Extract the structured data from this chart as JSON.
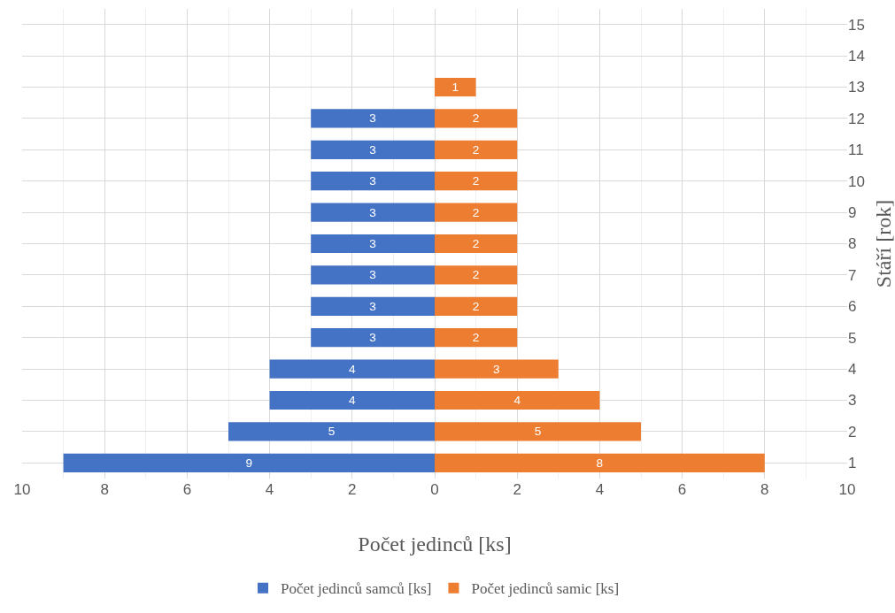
{
  "chart_data": {
    "type": "bar",
    "orientation": "horizontal",
    "xlabel": "Počet jedinců [ks]",
    "ylabel": "Stáří [rok]",
    "categories": [
      "15",
      "14",
      "13",
      "12",
      "11",
      "10",
      "9",
      "8",
      "7",
      "6",
      "5",
      "4",
      "3",
      "2",
      "1"
    ],
    "series": [
      {
        "name": "Počet jedinců samců [ks]",
        "color": "#4472c4",
        "values": [
          null,
          null,
          null,
          3,
          3,
          3,
          3,
          3,
          3,
          3,
          3,
          4,
          4,
          5,
          9
        ],
        "base": [
          null,
          null,
          null,
          -3,
          -3,
          -3,
          -3,
          -3,
          -3,
          -3,
          -3,
          -4,
          -4,
          -5,
          -9
        ]
      },
      {
        "name": "Počet jedinců samic [ks]",
        "color": "#ed7d31",
        "values": [
          null,
          null,
          1,
          2,
          2,
          2,
          2,
          2,
          2,
          2,
          2,
          3,
          4,
          5,
          8
        ]
      }
    ],
    "xlim": [
      -10,
      10
    ],
    "xticks": [
      {
        "value": -10,
        "label": "10"
      },
      {
        "value": -8,
        "label": "8"
      },
      {
        "value": -6,
        "label": "6"
      },
      {
        "value": -4,
        "label": "4"
      },
      {
        "value": -2,
        "label": "2"
      },
      0,
      2,
      4,
      6,
      8,
      10
    ],
    "data_labels": true,
    "grid": true,
    "legend": "bottom"
  }
}
